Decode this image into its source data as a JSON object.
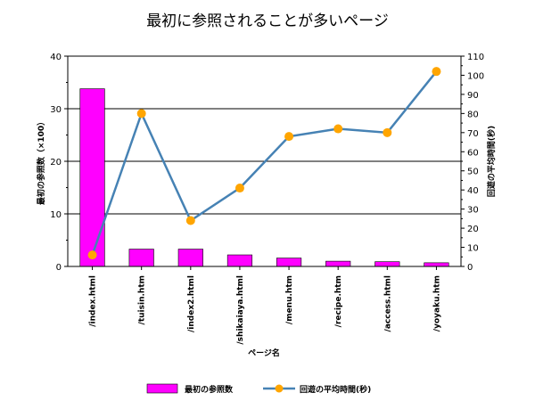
{
  "chart_data": {
    "type": "bar",
    "title": "最初に参照されることが多いページ",
    "xlabel": "ページ名",
    "categories": [
      "/index.html",
      "/tuisin.htm",
      "/index2.html",
      "/shikaiaya.html",
      "/menu.htm",
      "/recipe.htm",
      "/access.html",
      "/yoyaku.htm"
    ],
    "series": [
      {
        "name": "最初の参照数",
        "type": "bar",
        "axis": "left",
        "color": "#ff00ff",
        "values": [
          33.8,
          3.3,
          3.3,
          2.2,
          1.6,
          1.0,
          0.9,
          0.7
        ]
      },
      {
        "name": "回遊の平均時間(秒)",
        "type": "line",
        "axis": "right",
        "color": "#4682b4",
        "marker_color": "#ffa500",
        "values": [
          6,
          80,
          24,
          41,
          68,
          72,
          70,
          102
        ]
      }
    ],
    "left_axis": {
      "label": "最初の参照数（×100）",
      "ylim": [
        0,
        40
      ],
      "ticks": [
        0,
        10,
        20,
        30,
        40
      ]
    },
    "right_axis": {
      "label": "回遊の平均時間(秒)",
      "ylim": [
        0,
        110
      ],
      "ticks": [
        0,
        10,
        20,
        30,
        40,
        50,
        60,
        70,
        80,
        90,
        100,
        110
      ]
    },
    "grid": true,
    "legend": "bottom"
  }
}
